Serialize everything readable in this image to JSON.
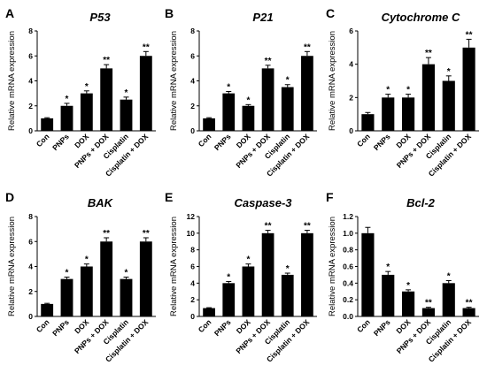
{
  "chart_data": [
    {
      "type": "bar",
      "panel": "A",
      "title": "P53",
      "ylabel": "Relative mRNA expression",
      "ylim": [
        0,
        8
      ],
      "yticks": [
        "0",
        "2",
        "4",
        "6",
        "8"
      ],
      "categories": [
        "Con",
        "PNPs",
        "DOX",
        "PNPs + DOX",
        "Cisplatin",
        "Cisplatin + DOX"
      ],
      "values": [
        1.0,
        2.0,
        3.0,
        5.0,
        2.5,
        6.0
      ],
      "errors": [
        0.05,
        0.2,
        0.2,
        0.3,
        0.2,
        0.35
      ],
      "significance": [
        "",
        "*",
        "*",
        "**",
        "*",
        "**"
      ]
    },
    {
      "type": "bar",
      "panel": "B",
      "title": "P21",
      "ylabel": "Relative mRNA expression",
      "ylim": [
        0,
        8
      ],
      "yticks": [
        "0",
        "2",
        "4",
        "6",
        "8"
      ],
      "categories": [
        "Con",
        "PNPs",
        "DOX",
        "PNPs + DOX",
        "Cisplatin",
        "Cisplatin + DOX"
      ],
      "values": [
        1.0,
        3.0,
        2.0,
        5.0,
        3.5,
        6.0
      ],
      "errors": [
        0.05,
        0.15,
        0.1,
        0.25,
        0.2,
        0.35
      ],
      "significance": [
        "",
        "*",
        "*",
        "**",
        "*",
        "**"
      ]
    },
    {
      "type": "bar",
      "panel": "C",
      "title": "Cytochrome C",
      "ylabel": "Relative mRNA expression",
      "ylim": [
        0,
        6
      ],
      "yticks": [
        "0",
        "2",
        "4",
        "6"
      ],
      "categories": [
        "Con",
        "PNPs",
        "DOX",
        "PNPs + DOX",
        "Cisplatin",
        "Cisplatin + DOX"
      ],
      "values": [
        1.0,
        2.0,
        2.0,
        4.0,
        3.0,
        5.0
      ],
      "errors": [
        0.1,
        0.2,
        0.2,
        0.4,
        0.3,
        0.5
      ],
      "significance": [
        "",
        "*",
        "*",
        "**",
        "*",
        "**"
      ]
    },
    {
      "type": "bar",
      "panel": "D",
      "title": "BAK",
      "ylabel": "Relative mRNA expression",
      "ylim": [
        0,
        8
      ],
      "yticks": [
        "0",
        "2",
        "4",
        "6",
        "8"
      ],
      "categories": [
        "Con",
        "PNPs",
        "DOX",
        "PNPs + DOX",
        "Cisplatin",
        "Cisplatin + DOX"
      ],
      "values": [
        1.0,
        3.0,
        4.0,
        6.0,
        3.0,
        6.0
      ],
      "errors": [
        0.05,
        0.15,
        0.2,
        0.3,
        0.15,
        0.3
      ],
      "significance": [
        "",
        "*",
        "*",
        "**",
        "*",
        "**"
      ]
    },
    {
      "type": "bar",
      "panel": "E",
      "title": "Caspase-3",
      "ylabel": "Relative mRNA expression",
      "ylim": [
        0,
        12
      ],
      "yticks": [
        "0",
        "2",
        "4",
        "6",
        "8",
        "10",
        "12"
      ],
      "categories": [
        "Con",
        "PNPs",
        "DOX",
        "PNPs + DOX",
        "Cisplatin",
        "Cisplatin + DOX"
      ],
      "values": [
        1.0,
        4.0,
        6.0,
        10.0,
        5.0,
        10.0
      ],
      "errors": [
        0.05,
        0.2,
        0.3,
        0.35,
        0.2,
        0.35
      ],
      "significance": [
        "",
        "*",
        "*",
        "**",
        "*",
        "**"
      ]
    },
    {
      "type": "bar",
      "panel": "F",
      "title": "Bcl-2",
      "ylabel": "Relative mRNA expression",
      "ylim": [
        0,
        1.2
      ],
      "yticks": [
        "0.0",
        "0.2",
        "0.4",
        "0.6",
        "0.8",
        "1.0",
        "1.2"
      ],
      "categories": [
        "Con",
        "PNPs",
        "DOX",
        "PNPs + DOX",
        "Cisplatin",
        "Cisplatin + DOX"
      ],
      "values": [
        1.0,
        0.5,
        0.3,
        0.1,
        0.4,
        0.1
      ],
      "errors": [
        0.07,
        0.04,
        0.02,
        0.01,
        0.03,
        0.01
      ],
      "significance": [
        "",
        "*",
        "*",
        "**",
        "*",
        "**"
      ]
    }
  ]
}
